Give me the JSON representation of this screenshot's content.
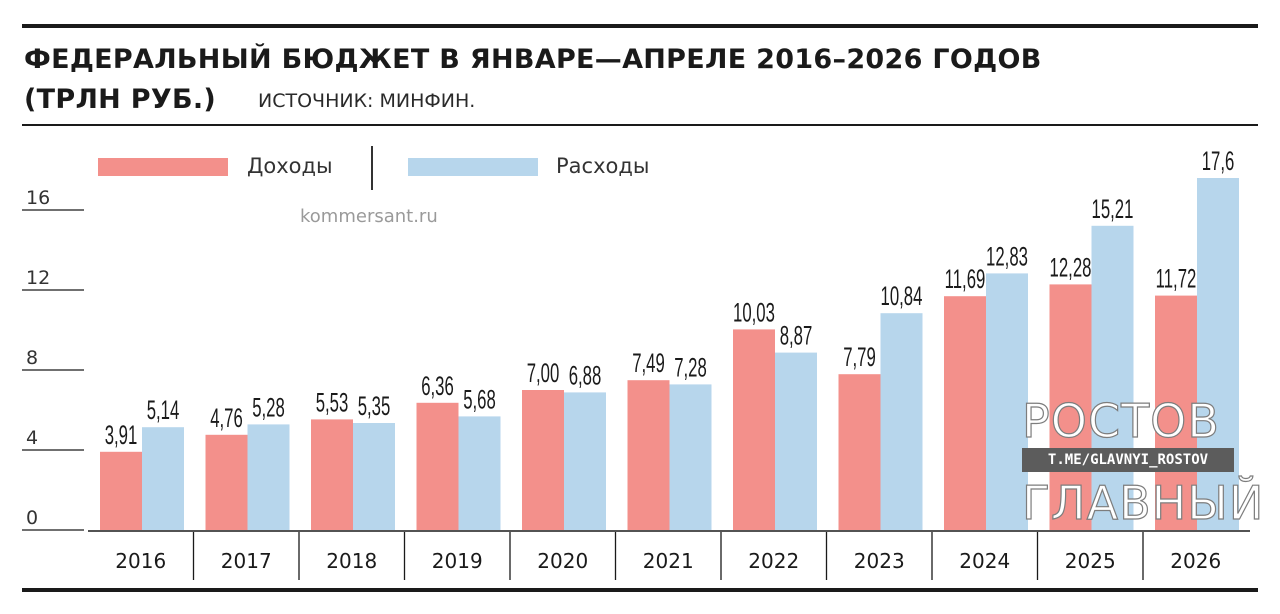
{
  "chart_data": {
    "type": "bar",
    "title": "ФЕДЕРАЛЬНЫЙ БЮДЖЕТ В ЯНВАРЕ—АПРЕЛЕ 2016–2026 ГОДОВ",
    "subtitle": "(ТРЛН РУБ.)",
    "source": "ИСТОЧНИК: МИНФИН.",
    "categories": [
      "2016",
      "2017",
      "2018",
      "2019",
      "2020",
      "2021",
      "2022",
      "2023",
      "2024",
      "2025",
      "2026"
    ],
    "series": [
      {
        "name": "Доходы",
        "color": "#f3908b",
        "values": [
          3.91,
          4.76,
          5.53,
          6.36,
          7.0,
          7.49,
          10.03,
          7.79,
          11.69,
          12.28,
          11.72
        ]
      },
      {
        "name": "Расходы",
        "color": "#b7d6ec",
        "values": [
          5.14,
          5.28,
          5.35,
          5.68,
          6.88,
          7.28,
          8.87,
          10.84,
          12.83,
          15.21,
          17.6
        ]
      }
    ],
    "value_labels": {
      "Доходы": [
        "3,91",
        "4,76",
        "5,53",
        "6,36",
        "7,00",
        "7,49",
        "10,03",
        "7,79",
        "11,69",
        "12,28",
        "11,72"
      ],
      "Расходы": [
        "5,14",
        "5,28",
        "5,35",
        "5,68",
        "6,88",
        "7,28",
        "8,87",
        "10,84",
        "12,83",
        "15,21",
        "17,6"
      ]
    },
    "y_ticks": [
      0,
      4,
      8,
      12,
      16
    ],
    "ylim": [
      0,
      18
    ],
    "xlabel": "",
    "ylabel": "",
    "grid": false,
    "legend_position": "top-left"
  },
  "watermarks": {
    "site": "kommersant.ru",
    "channel_top": "РОСТОВ",
    "channel_link": "T.ME/GLAVNYI_ROSTOV",
    "channel_bottom": "ГЛАВНЫЙ"
  }
}
